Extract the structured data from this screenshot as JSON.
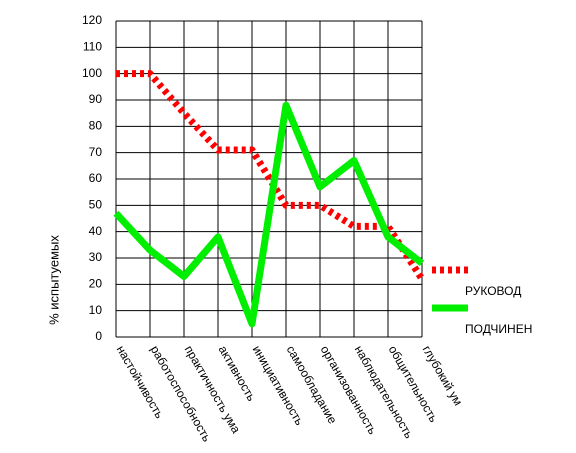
{
  "chart_data": {
    "type": "line",
    "y_label": "% испытуемых",
    "categories": [
      "настойчивость",
      "работоспособность",
      "практичность ума",
      "активность",
      "инициативность",
      "самообладание",
      "организованность",
      "наблюдательность",
      "общительность",
      "глубокий ум"
    ],
    "series": [
      {
        "name": "РУКОВОД",
        "color": "#ff0000",
        "dashed": true,
        "values": [
          100,
          100,
          85,
          71,
          71,
          50,
          50,
          42,
          42,
          22
        ]
      },
      {
        "name": "ПОДЧИНЕН",
        "color": "#00ee00",
        "dashed": false,
        "values": [
          47,
          33,
          23,
          38,
          5,
          88,
          57,
          67,
          38,
          28
        ]
      }
    ],
    "ylim": [
      0,
      120
    ],
    "yticks": [
      0,
      10,
      20,
      30,
      40,
      50,
      60,
      70,
      80,
      90,
      100,
      110,
      120
    ],
    "grid": true
  }
}
